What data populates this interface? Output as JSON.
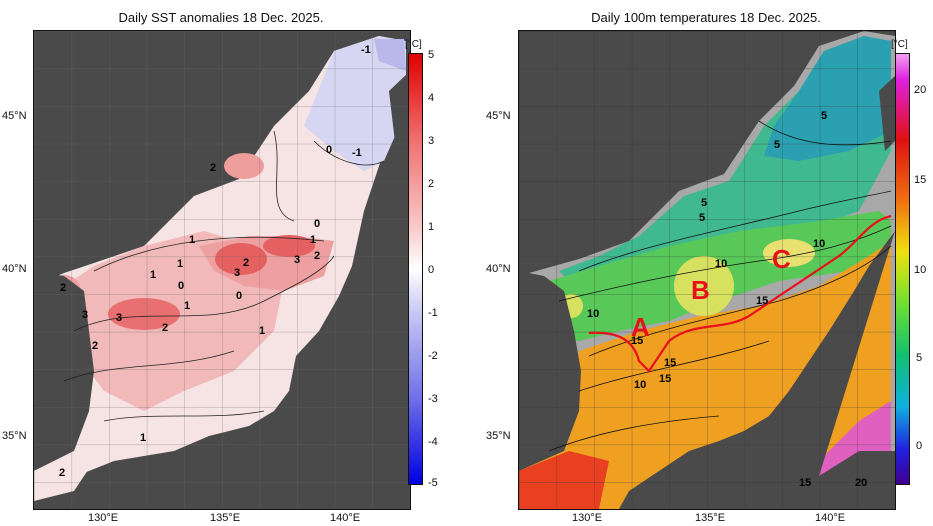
{
  "left": {
    "title": "Daily SST anomalies 18 Dec. 2025.",
    "unit": "[°C]",
    "colorbar_ticks": [
      "5",
      "4",
      "3",
      "2",
      "1",
      "0",
      "-1",
      "-2",
      "-3",
      "-4",
      "-5"
    ],
    "lat_labels": [
      "45°N",
      "40°N",
      "35°N"
    ],
    "lon_labels": [
      "130°E",
      "135°E",
      "140°E"
    ],
    "contour_labels": [
      "-1",
      "-1",
      "0",
      "0",
      "1",
      "1",
      "1",
      "0",
      "1",
      "2",
      "3",
      "3",
      "2",
      "3",
      "2",
      "2",
      "3",
      "2",
      "1",
      "2",
      "1",
      "2",
      "1",
      "0"
    ]
  },
  "right": {
    "title": "Daily 100m temperatures 18 Dec. 2025.",
    "unit": "[°C]",
    "colorbar_ticks": [
      "20",
      "15",
      "10",
      "5",
      "0"
    ],
    "lat_labels": [
      "45°N",
      "40°N",
      "35°N"
    ],
    "lon_labels": [
      "130°E",
      "135°E",
      "140°E"
    ],
    "contour_labels": [
      "5",
      "5",
      "5",
      "5",
      "10",
      "10",
      "10",
      "15",
      "15",
      "15",
      "10",
      "15",
      "15",
      "20"
    ],
    "region_labels": [
      "A",
      "B",
      "C"
    ]
  },
  "colors": {
    "land": "#4a4a4a",
    "anomaly_warm": "#e84a4a",
    "anomaly_cool": "#8a8ad8",
    "front_line": "#e8101a"
  }
}
